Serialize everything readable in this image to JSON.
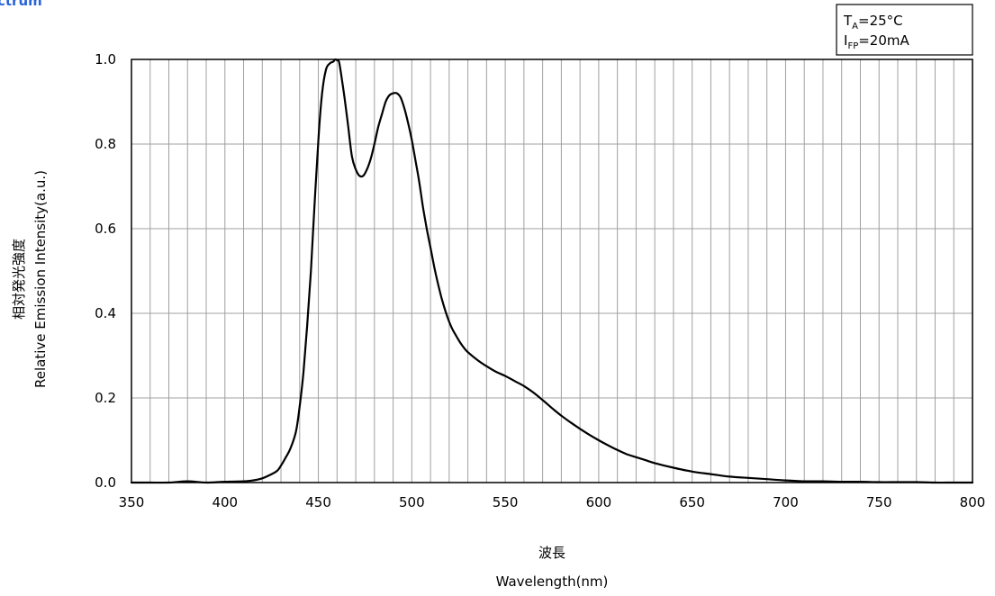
{
  "title_fragment": "ctrum",
  "conditions": {
    "line1_main": "T",
    "line1_sub": "A",
    "line1_rest": "=25°C",
    "line2_main": "I",
    "line2_sub": "FP",
    "line2_rest": "=20mA"
  },
  "chart_data": {
    "type": "line",
    "xlabel_jp": "波長",
    "xlabel": "Wavelength(nm)",
    "ylabel_jp": "相対発光強度",
    "ylabel": "Relative Emission Intensity(a.u.)",
    "xlim": [
      350,
      800
    ],
    "ylim": [
      0.0,
      1.0
    ],
    "x_ticks": [
      350,
      400,
      450,
      500,
      550,
      600,
      650,
      700,
      750,
      800
    ],
    "x_tick_labels": [
      "350",
      "400",
      "450",
      "500",
      "550",
      "600",
      "650",
      "700",
      "750",
      "800"
    ],
    "y_ticks": [
      0.0,
      0.2,
      0.4,
      0.6,
      0.8,
      1.0
    ],
    "y_tick_labels": [
      "0.0",
      "0.2",
      "0.4",
      "0.6",
      "0.8",
      "1.0"
    ],
    "grid": {
      "x_minor_step": 10,
      "y_step": 0.2
    },
    "series": [
      {
        "x": [
          350,
          360,
          370,
          380,
          390,
          400,
          410,
          415,
          420,
          425,
          428,
          430,
          432,
          435,
          438,
          440,
          442,
          444,
          446,
          448,
          450,
          452,
          454,
          456,
          458,
          459,
          460,
          461,
          462,
          464,
          466,
          468,
          470,
          472,
          474,
          476,
          478,
          480,
          482,
          484,
          486,
          488,
          490,
          492,
          494,
          496,
          498,
          500,
          502,
          504,
          506,
          508,
          510,
          512,
          514,
          516,
          518,
          520,
          522,
          524,
          526,
          528,
          530,
          535,
          540,
          545,
          550,
          555,
          560,
          565,
          570,
          575,
          580,
          585,
          590,
          595,
          600,
          605,
          610,
          615,
          620,
          625,
          630,
          640,
          650,
          660,
          670,
          680,
          690,
          700,
          710,
          720,
          730,
          740,
          750,
          760,
          770,
          780,
          790,
          800
        ],
        "y": [
          0.0,
          0.0,
          0.0,
          0.003,
          0.0,
          0.002,
          0.003,
          0.005,
          0.01,
          0.02,
          0.028,
          0.04,
          0.055,
          0.08,
          0.12,
          0.18,
          0.26,
          0.37,
          0.5,
          0.66,
          0.81,
          0.92,
          0.975,
          0.99,
          0.995,
          1.0,
          0.998,
          0.995,
          0.97,
          0.91,
          0.84,
          0.77,
          0.74,
          0.725,
          0.725,
          0.74,
          0.765,
          0.8,
          0.84,
          0.87,
          0.9,
          0.915,
          0.92,
          0.92,
          0.91,
          0.885,
          0.85,
          0.81,
          0.76,
          0.71,
          0.65,
          0.6,
          0.555,
          0.51,
          0.47,
          0.435,
          0.405,
          0.38,
          0.36,
          0.345,
          0.33,
          0.318,
          0.308,
          0.29,
          0.275,
          0.262,
          0.252,
          0.24,
          0.228,
          0.213,
          0.195,
          0.176,
          0.158,
          0.142,
          0.127,
          0.113,
          0.1,
          0.088,
          0.077,
          0.067,
          0.06,
          0.053,
          0.046,
          0.035,
          0.026,
          0.02,
          0.014,
          0.011,
          0.008,
          0.005,
          0.003,
          0.003,
          0.002,
          0.002,
          0.001,
          0.001,
          0.001,
          0.0,
          0.0,
          0.0
        ]
      }
    ]
  }
}
